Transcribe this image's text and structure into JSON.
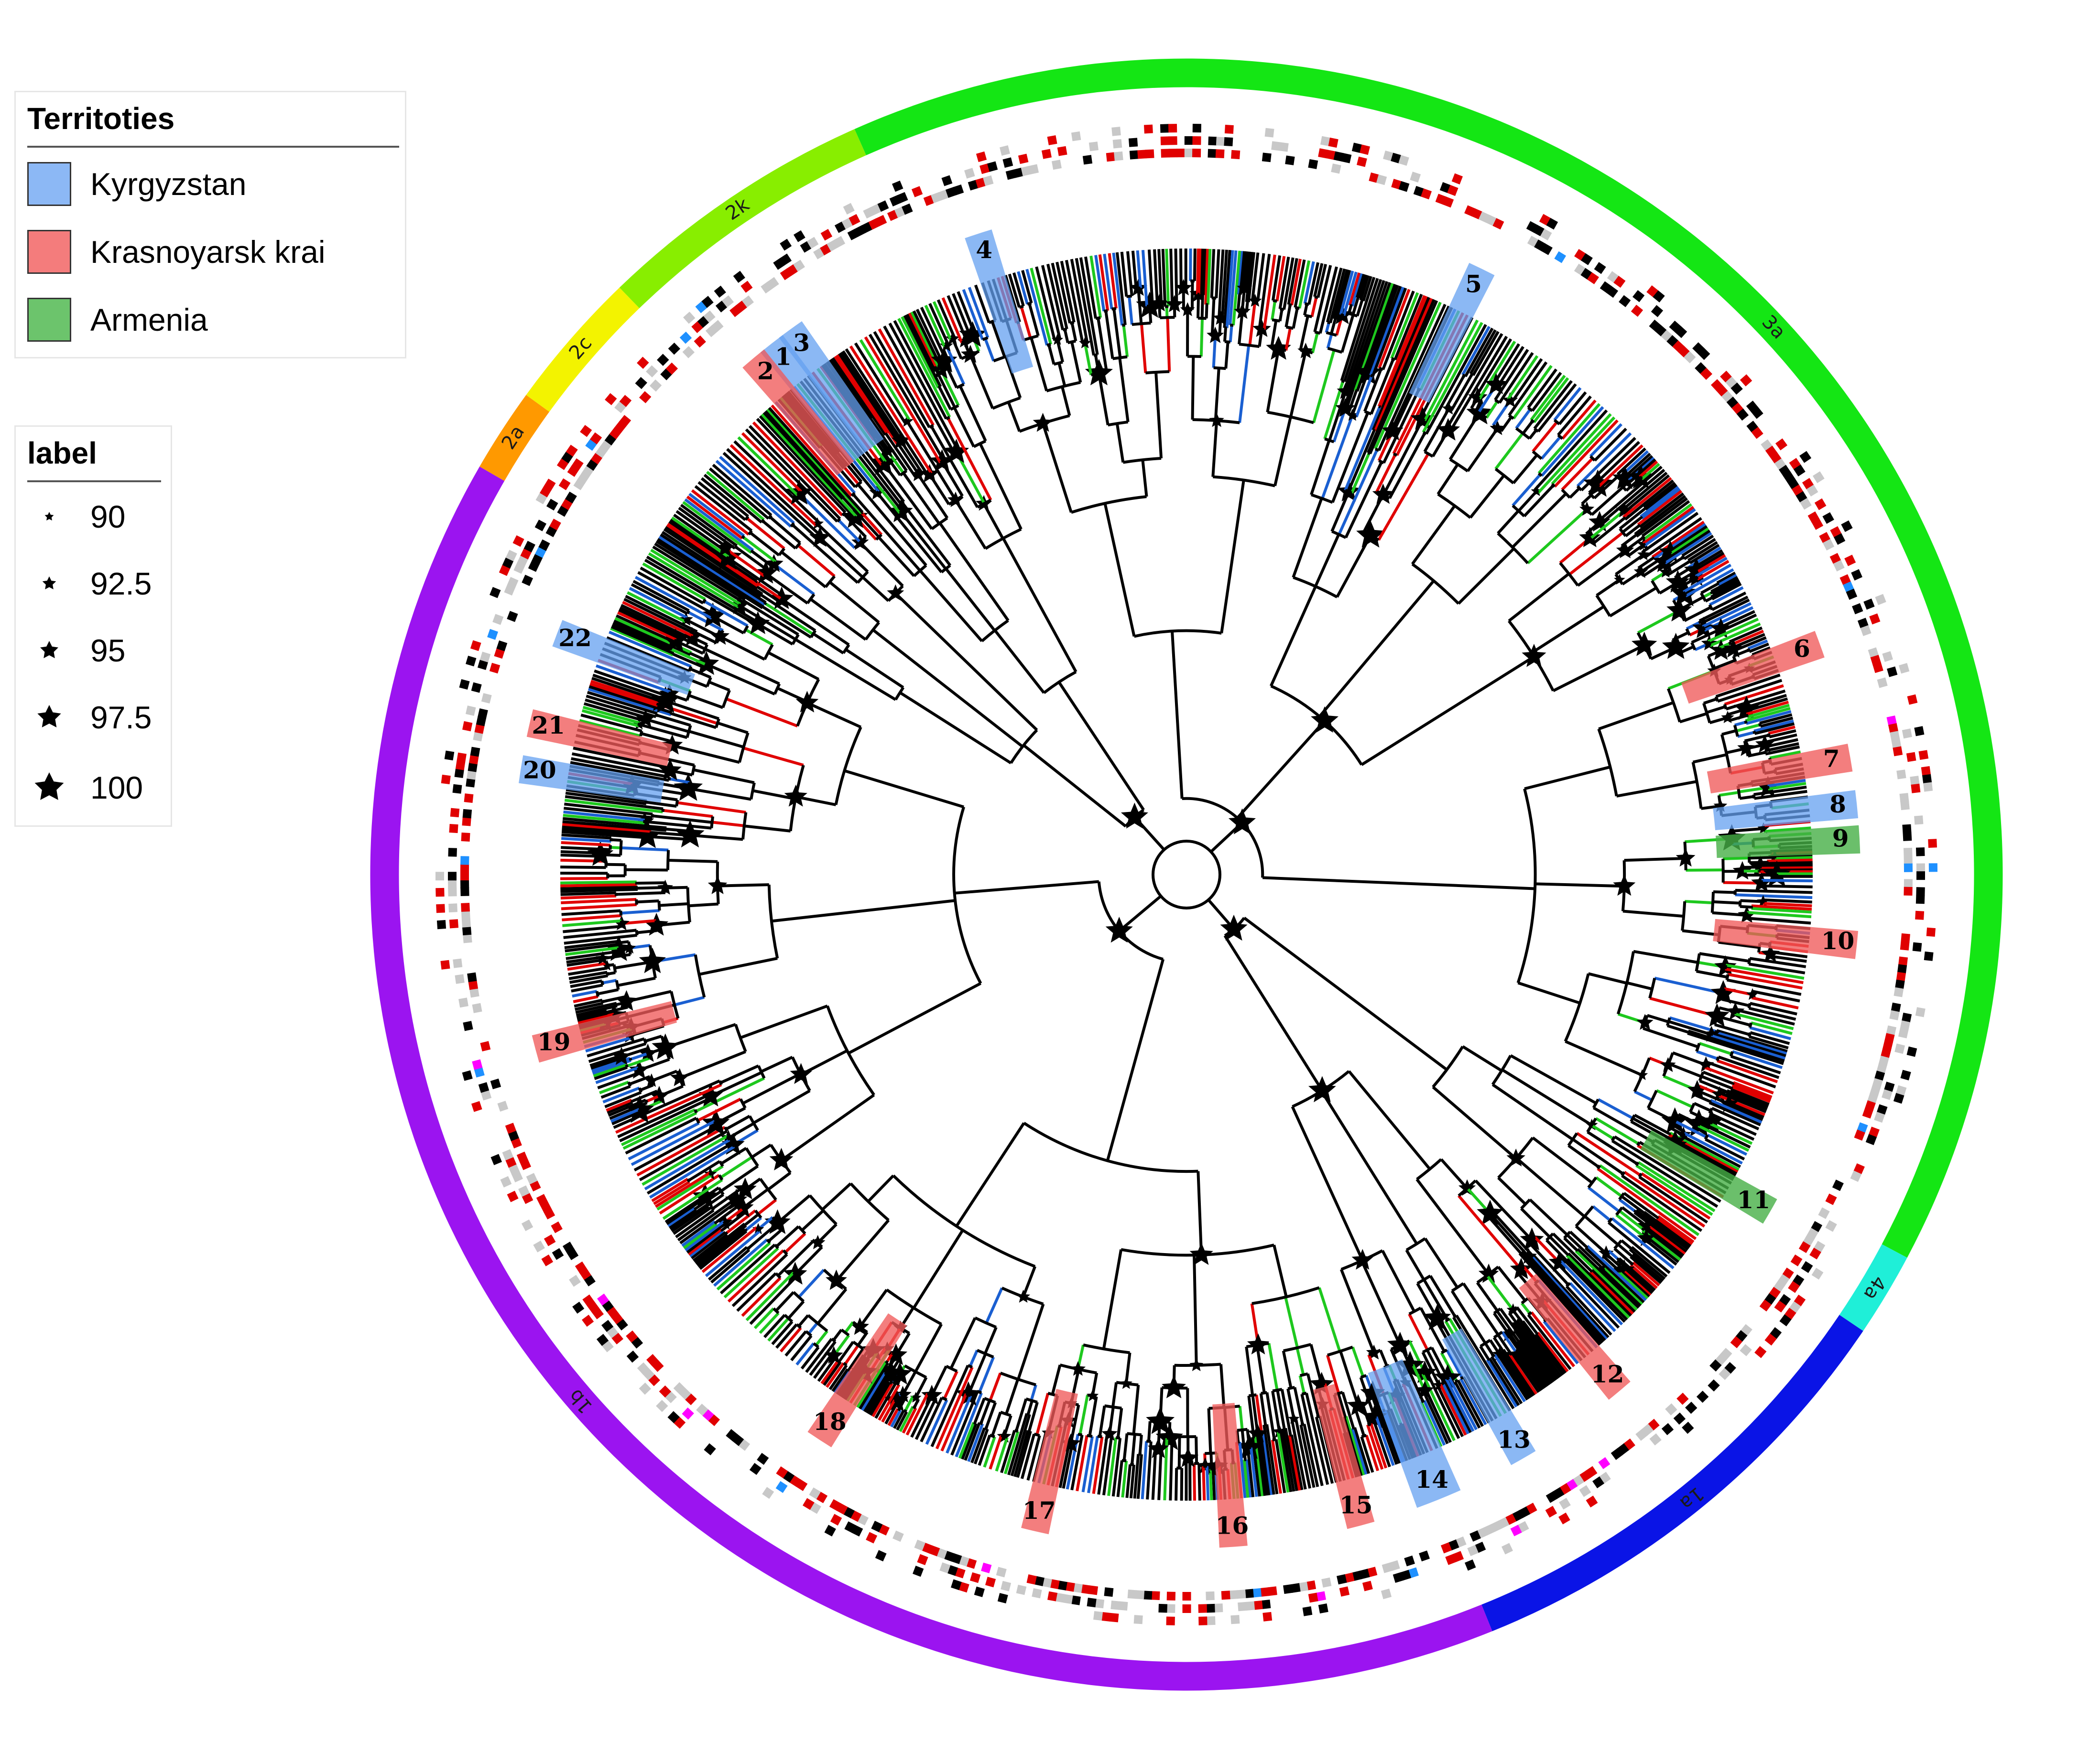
{
  "legend_territories": {
    "title": "Territoties",
    "items": [
      {
        "label": "Kyrgyzstan",
        "color": "#8cb8f5"
      },
      {
        "label": "Krasnoyarsk krai",
        "color": "#f47c7c"
      },
      {
        "label": "Armenia",
        "color": "#6cc46c"
      }
    ]
  },
  "legend_label": {
    "title": "label",
    "items": [
      {
        "label": "90",
        "rank": 1
      },
      {
        "label": "92.5",
        "rank": 2
      },
      {
        "label": "95",
        "rank": 3
      },
      {
        "label": "97.5",
        "rank": 4
      },
      {
        "label": "100",
        "rank": 5
      }
    ]
  },
  "genotype_ring": [
    {
      "label": "3a",
      "color": "#14e614"
    },
    {
      "label": "4a",
      "color": "#1fefd8"
    },
    {
      "label": "1a",
      "color": "#0a14e6"
    },
    {
      "label": "1b",
      "color": "#9b14f0"
    },
    {
      "label": "2a",
      "color": "#ff9900"
    },
    {
      "label": "2c",
      "color": "#f3f300"
    },
    {
      "label": "2k",
      "color": "#88ee00"
    }
  ],
  "clusters": [
    {
      "label": "1",
      "territory": "Kyrgyzstan"
    },
    {
      "label": "2",
      "territory": "Krasnoyarsk krai"
    },
    {
      "label": "3",
      "territory": "Kyrgyzstan"
    },
    {
      "label": "4",
      "territory": "Kyrgyzstan"
    },
    {
      "label": "5",
      "territory": "Kyrgyzstan"
    },
    {
      "label": "6",
      "territory": "Krasnoyarsk krai"
    },
    {
      "label": "7",
      "territory": "Krasnoyarsk krai"
    },
    {
      "label": "8",
      "territory": "Kyrgyzstan"
    },
    {
      "label": "9",
      "territory": "Armenia"
    },
    {
      "label": "10",
      "territory": "Krasnoyarsk krai"
    },
    {
      "label": "11",
      "territory": "Armenia"
    },
    {
      "label": "12",
      "territory": "Krasnoyarsk krai"
    },
    {
      "label": "13",
      "territory": "Kyrgyzstan"
    },
    {
      "label": "14",
      "territory": "Kyrgyzstan"
    },
    {
      "label": "15",
      "territory": "Krasnoyarsk krai"
    },
    {
      "label": "16",
      "territory": "Krasnoyarsk krai"
    },
    {
      "label": "17",
      "territory": "Krasnoyarsk krai"
    },
    {
      "label": "18",
      "territory": "Krasnoyarsk krai"
    },
    {
      "label": "19",
      "territory": "Krasnoyarsk krai"
    },
    {
      "label": "20",
      "territory": "Kyrgyzstan"
    },
    {
      "label": "21",
      "territory": "Krasnoyarsk krai"
    },
    {
      "label": "22",
      "territory": "Kyrgyzstan"
    }
  ],
  "branch_colors": {
    "Kyrgyzstan": "#1a5fd1",
    "Krasnoyarsk krai": "#e00000",
    "Armenia": "#1ec81e",
    "other": "#000000"
  },
  "tip_marker_colors": [
    "#e00000",
    "#000000",
    "#c8c8c8",
    "#ff00ff",
    "#1e90ff"
  ]
}
